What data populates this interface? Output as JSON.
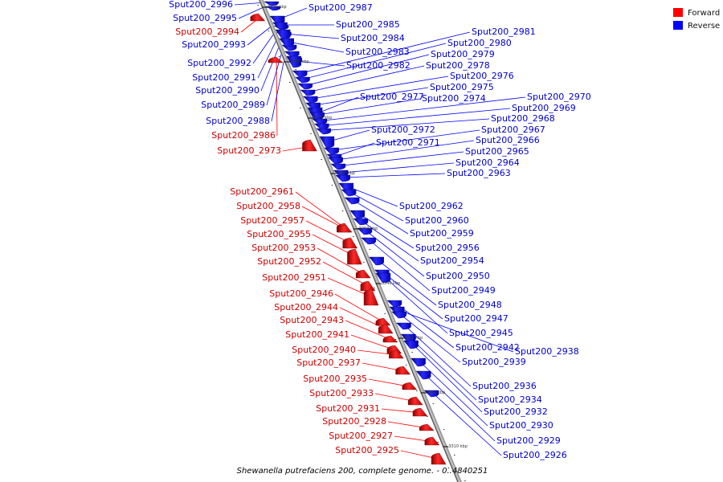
{
  "caption": "Shewanella putrefaciens 200, complete genome. - 0..4840251",
  "legend": [
    {
      "label": "Forward",
      "color": "#ff0000"
    },
    {
      "label": "Reverse",
      "color": "#0000ff"
    }
  ],
  "ticks": [
    "3390 kbp",
    "3380 kbp",
    "3370 kbp",
    "3360 kbp",
    "3350 kbp",
    "3340 kbp",
    "3330 kbp",
    "3320 kbp",
    "3310 kbp"
  ],
  "forward_genes": [
    "Sput200_2994",
    "Sput200_2986",
    "Sput200_2973",
    "Sput200_2961",
    "Sput200_2958",
    "Sput200_2957",
    "Sput200_2955",
    "Sput200_2953",
    "Sput200_2952",
    "Sput200_2951",
    "Sput200_2946",
    "Sput200_2944",
    "Sput200_2943",
    "Sput200_2941",
    "Sput200_2940",
    "Sput200_2937",
    "Sput200_2935",
    "Sput200_2933",
    "Sput200_2931",
    "Sput200_2928",
    "Sput200_2927",
    "Sput200_2925"
  ],
  "reverse_left_genes": [
    "Sput200_2996",
    "Sput200_2995",
    "Sput200_2993",
    "Sput200_2992",
    "Sput200_2991",
    "Sput200_2990",
    "Sput200_2989",
    "Sput200_2988"
  ],
  "reverse_right_genes": [
    "Sput200_2987",
    "Sput200_2985",
    "Sput200_2984",
    "Sput200_2983",
    "Sput200_2982",
    "Sput200_2981",
    "Sput200_2980",
    "Sput200_2979",
    "Sput200_2978",
    "Sput200_2976",
    "Sput200_2975",
    "Sput200_2977",
    "Sput200_2974",
    "Sput200_2970",
    "Sput200_2969",
    "Sput200_2968",
    "Sput200_2972",
    "Sput200_2967",
    "Sput200_2971",
    "Sput200_2966",
    "Sput200_2965",
    "Sput200_2964",
    "Sput200_2963",
    "Sput200_2962",
    "Sput200_2960",
    "Sput200_2959",
    "Sput200_2956",
    "Sput200_2954",
    "Sput200_2950",
    "Sput200_2949",
    "Sput200_2948",
    "Sput200_2947",
    "Sput200_2945",
    "Sput200_2942",
    "Sput200_2938",
    "Sput200_2939",
    "Sput200_2936",
    "Sput200_2934",
    "Sput200_2932",
    "Sput200_2930",
    "Sput200_2929",
    "Sput200_2926"
  ]
}
